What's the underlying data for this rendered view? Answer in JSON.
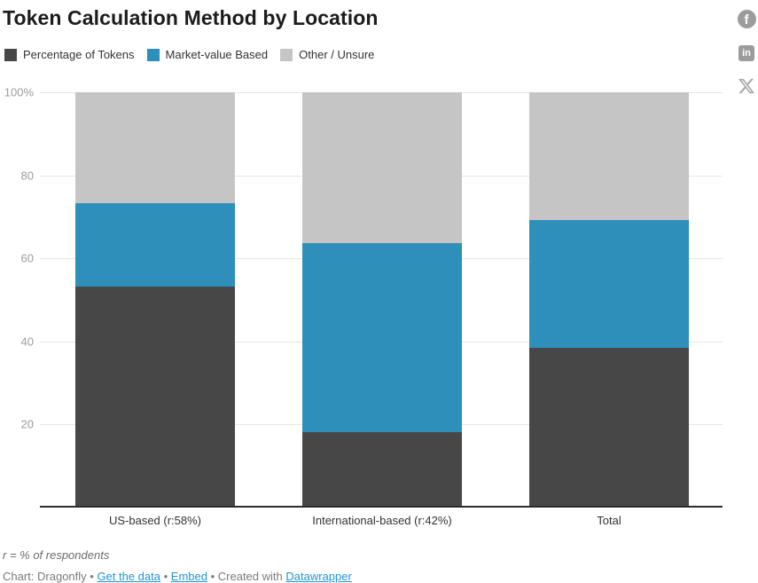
{
  "title": "Token Calculation Method by Location",
  "legend": {
    "items": [
      {
        "label": "Percentage of Tokens",
        "color": "#474747"
      },
      {
        "label": "Market-value Based",
        "color": "#2e8fba"
      },
      {
        "label": "Other / Unsure",
        "color": "#c5c5c5"
      }
    ]
  },
  "chart_data": {
    "type": "bar",
    "stacked": true,
    "title": "Token Calculation Method by Location",
    "xlabel": "",
    "ylabel": "",
    "ylim": [
      0,
      100
    ],
    "grid": true,
    "legend_position": "top",
    "categories": [
      "US-based (r:58%)",
      "International-based (r:42%)",
      "Total"
    ],
    "series": [
      {
        "name": "Percentage of Tokens",
        "color": "#474747",
        "values": [
          53.3,
          18.2,
          38.5
        ]
      },
      {
        "name": "Market-value Based",
        "color": "#2e8fba",
        "values": [
          20.0,
          45.5,
          30.8
        ]
      },
      {
        "name": "Other / Unsure",
        "color": "#c5c5c5",
        "values": [
          26.7,
          36.4,
          30.8
        ]
      }
    ],
    "yticks": [
      {
        "value": 100,
        "label": "100%"
      },
      {
        "value": 80,
        "label": "80"
      },
      {
        "value": 60,
        "label": "60"
      },
      {
        "value": 40,
        "label": "40"
      },
      {
        "value": 20,
        "label": "20"
      }
    ]
  },
  "footer": {
    "note": "r = % of respondents",
    "link_color": "#2394d2",
    "byline": [
      {
        "name": "byline-text",
        "text": "Chart: Dragonfly",
        "link": false
      },
      {
        "name": "byline-separator",
        "text": " • ",
        "link": false
      },
      {
        "name": "get-the-data-link",
        "text": "Get the data",
        "link": true
      },
      {
        "name": "byline-separator",
        "text": " • ",
        "link": false
      },
      {
        "name": "embed-link",
        "text": "Embed",
        "link": true
      },
      {
        "name": "byline-separator",
        "text": " • ",
        "link": false
      },
      {
        "name": "byline-text",
        "text": "Created with ",
        "link": false
      },
      {
        "name": "datawrapper-link",
        "text": "Datawrapper",
        "link": true
      }
    ]
  },
  "social": {
    "icons": [
      "facebook-share-icon",
      "linkedin-share-icon",
      "x-share-icon"
    ],
    "facebook_glyph": "f",
    "linkedin_glyph": "in"
  }
}
